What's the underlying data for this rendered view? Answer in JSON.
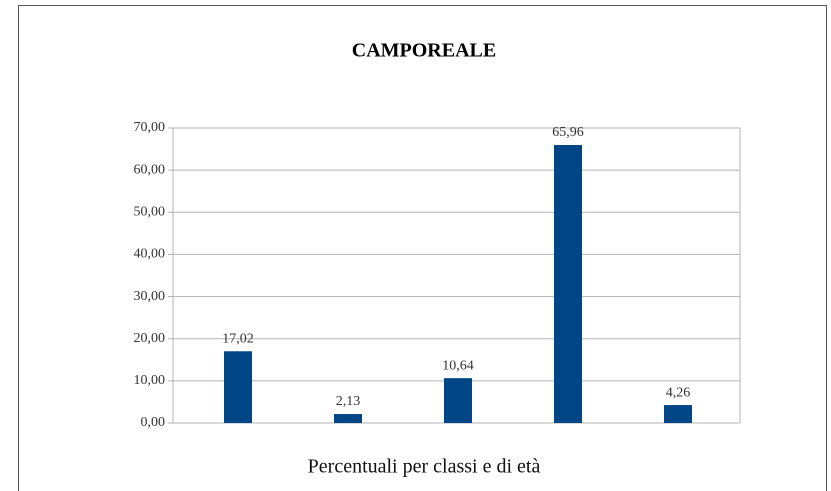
{
  "chart_data": {
    "type": "bar",
    "title": "CAMPOREALE",
    "x_label": "Percentuali per classi e di età",
    "categories": [
      null,
      null,
      null,
      null,
      null
    ],
    "values": [
      17.02,
      2.13,
      10.64,
      65.96,
      4.26
    ],
    "value_labels": [
      "17,02",
      "2,13",
      "10,64",
      "65,96",
      "4,26"
    ],
    "color": "#004586",
    "ylim": [
      0,
      70
    ],
    "yticks": [
      {
        "value": 0,
        "label": "0,00"
      },
      {
        "value": 10,
        "label": "10,00"
      },
      {
        "value": 20,
        "label": "20,00"
      },
      {
        "value": 30,
        "label": "30,00"
      },
      {
        "value": 40,
        "label": "40,00"
      },
      {
        "value": 50,
        "label": "50,00"
      },
      {
        "value": 60,
        "label": "60,00"
      },
      {
        "value": 70,
        "label": "70,00"
      }
    ],
    "grid": true
  }
}
